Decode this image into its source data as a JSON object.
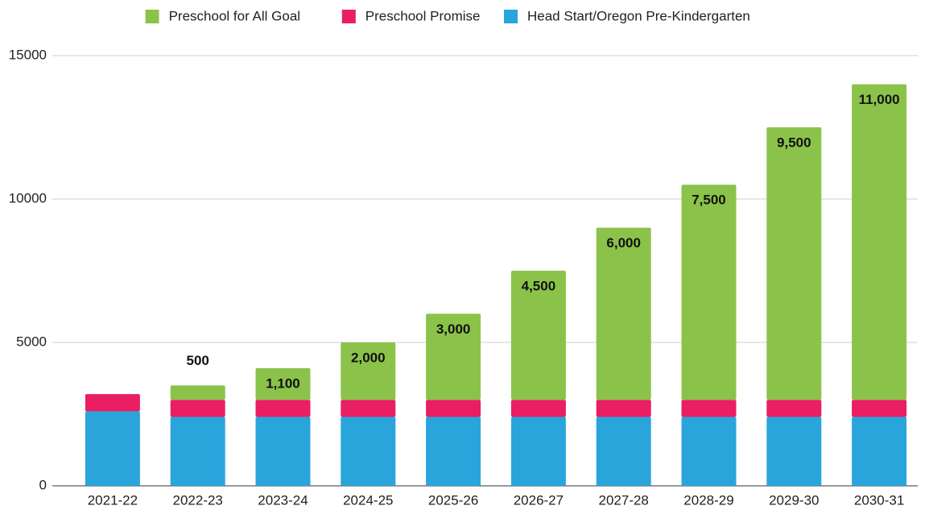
{
  "chart_data": {
    "type": "stacked_bar",
    "categories": [
      "2021-22",
      "2022-23",
      "2023-24",
      "2024-25",
      "2025-26",
      "2026-27",
      "2027-28",
      "2028-29",
      "2029-30",
      "2030-31"
    ],
    "series": [
      {
        "name": "Head Start/Oregon Pre-Kindergarten",
        "color": "#29a5dc",
        "values": [
          2600,
          2400,
          2400,
          2400,
          2400,
          2400,
          2400,
          2400,
          2400,
          2400
        ]
      },
      {
        "name": "Preschool Promise",
        "color": "#e91e63",
        "values": [
          600,
          600,
          600,
          600,
          600,
          600,
          600,
          600,
          600,
          600
        ]
      },
      {
        "name": "Preschool for All Goal",
        "color": "#8bc34a",
        "values": [
          0,
          500,
          1100,
          2000,
          3000,
          4500,
          6000,
          7500,
          9500,
          11000
        ],
        "value_labels": [
          null,
          "500",
          "1,100",
          "2,000",
          "3,000",
          "4,500",
          "6,000",
          "7,500",
          "9,500",
          "11,000"
        ]
      }
    ],
    "ylim": [
      0,
      15000
    ],
    "yticks": [
      0,
      5000,
      10000,
      15000
    ],
    "grid": true,
    "legend": "top"
  }
}
